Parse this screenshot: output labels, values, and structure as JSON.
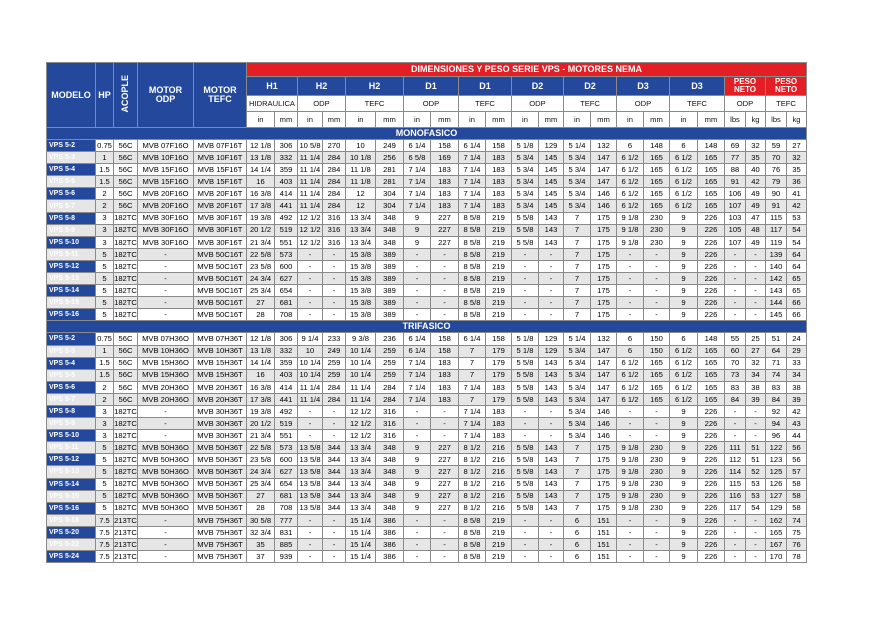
{
  "header": {
    "title": "DIMENSIONES Y PESO SERIE VPS - MOTORES NEMA",
    "fixed": [
      "MODELO",
      "HP",
      "ACOPLE",
      "MOTOR ODP",
      "MOTOR TEFC"
    ],
    "groups": [
      "H1",
      "H2",
      "H2",
      "D1",
      "D1",
      "D2",
      "D2",
      "D3",
      "D3",
      "PESO NETO",
      "PESO NETO"
    ],
    "motors": [
      "HIDRAULICA",
      "ODP",
      "TEFC",
      "ODP",
      "TEFC",
      "ODP",
      "TEFC",
      "ODP",
      "TEFC",
      "ODP",
      "TEFC"
    ],
    "units": [
      "in",
      "mm",
      "in",
      "mm",
      "in",
      "mm",
      "in",
      "mm",
      "in",
      "mm",
      "in",
      "mm",
      "in",
      "mm",
      "in",
      "mm",
      "in",
      "mm",
      "lbs",
      "kg",
      "lbs",
      "kg"
    ]
  },
  "sections": [
    {
      "title": "MONOFASICO",
      "rows": [
        [
          "VPS 5-2",
          0.75,
          "56C",
          "MVB 07F16O",
          "MVB 07F16T",
          "12 1/8",
          306,
          "10 5/8",
          270,
          10,
          249,
          "6 1/4",
          158,
          "6 1/4",
          158,
          "5 1/8",
          129,
          "5 1/4",
          132,
          6,
          148,
          6,
          148,
          69,
          32,
          59,
          27
        ],
        [
          "VPS 5-3",
          1,
          "56C",
          "MVB 10F16O",
          "MVB 10F16T",
          "13 1/8",
          332,
          "11 1/4",
          284,
          "10 1/8",
          256,
          "6 5/8",
          169,
          "7 1/4",
          183,
          "5 3/4",
          145,
          "5 3/4",
          147,
          "6 1/2",
          165,
          "6 1/2",
          165,
          77,
          35,
          70,
          32
        ],
        [
          "VPS 5-4",
          1.5,
          "56C",
          "MVB 15F16O",
          "MVB 15F16T",
          "14 1/4",
          359,
          "11 1/4",
          284,
          "11 1/8",
          281,
          "7 1/4",
          183,
          "7 1/4",
          183,
          "5 3/4",
          145,
          "5 3/4",
          147,
          "6 1/2",
          165,
          "6 1/2",
          165,
          88,
          40,
          76,
          35
        ],
        [
          "VPS 5-5",
          1.5,
          "56C",
          "MVB 15F16O",
          "MVB 15F16T",
          16,
          403,
          "11 1/4",
          284,
          "11 1/8",
          281,
          "7 1/4",
          183,
          "7 1/4",
          183,
          "5 3/4",
          145,
          "5 3/4",
          147,
          "6 1/2",
          165,
          "6 1/2",
          165,
          91,
          42,
          79,
          36
        ],
        [
          "VPS 5-6",
          2,
          "56C",
          "MVB 20F16O",
          "MVB 20F16T",
          "16 3/8",
          414,
          "11 1/4",
          284,
          12,
          304,
          "7 1/4",
          183,
          "7 1/4",
          183,
          "5 3/4",
          145,
          "5 3/4",
          146,
          "6 1/2",
          165,
          "6 1/2",
          165,
          106,
          49,
          90,
          41
        ],
        [
          "VPS 5-7",
          2,
          "56C",
          "MVB 20F16O",
          "MVB 20F16T",
          "17 3/8",
          441,
          "11 1/4",
          284,
          12,
          304,
          "7 1/4",
          183,
          "7 1/4",
          183,
          "5 3/4",
          145,
          "5 3/4",
          146,
          "6 1/2",
          165,
          "6 1/2",
          165,
          107,
          49,
          91,
          42
        ],
        [
          "VPS 5-8",
          3,
          "182TC",
          "MVB 30F16O",
          "MVB 30F16T",
          "19 3/8",
          492,
          "12 1/2",
          316,
          "13 3/4",
          348,
          9,
          227,
          "8 5/8",
          219,
          "5 5/8",
          143,
          7,
          175,
          "9 1/8",
          230,
          9,
          226,
          103,
          47,
          115,
          53
        ],
        [
          "VPS 5-9",
          3,
          "182TC",
          "MVB 30F16O",
          "MVB 30F16T",
          "20 1/2",
          519,
          "12 1/2",
          316,
          "13 3/4",
          348,
          9,
          227,
          "8 5/8",
          219,
          "5 5/8",
          143,
          7,
          175,
          "9 1/8",
          230,
          9,
          226,
          105,
          48,
          117,
          54
        ],
        [
          "VPS 5-10",
          3,
          "182TC",
          "MVB 30F16O",
          "MVB 30F16T",
          "21 3/4",
          551,
          "12 1/2",
          316,
          "13 3/4",
          348,
          9,
          227,
          "8 5/8",
          219,
          "5 5/8",
          143,
          7,
          175,
          "9 1/8",
          230,
          9,
          226,
          107,
          49,
          119,
          54
        ],
        [
          "VPS 5-11",
          5,
          "182TC",
          "-",
          "MVB 50C16T",
          "22 5/8",
          573,
          "-",
          "-",
          "15 3/8",
          389,
          "-",
          "-",
          "8 5/8",
          219,
          "-",
          "-",
          7,
          175,
          "-",
          "-",
          9,
          226,
          "-",
          "-",
          139,
          64
        ],
        [
          "VPS 5-12",
          5,
          "182TC",
          "-",
          "MVB 50C16T",
          "23 5/8",
          600,
          "-",
          "-",
          "15 3/8",
          389,
          "-",
          "-",
          "8 5/8",
          219,
          "-",
          "-",
          7,
          175,
          "-",
          "-",
          9,
          226,
          "-",
          "-",
          140,
          64
        ],
        [
          "VPS 5-13",
          5,
          "182TC",
          "-",
          "MVB 50C16T",
          "24 3/4",
          627,
          "-",
          "-",
          "15 3/8",
          389,
          "-",
          "-",
          "8 5/8",
          219,
          "-",
          "-",
          7,
          175,
          "-",
          "-",
          9,
          226,
          "-",
          "-",
          142,
          65
        ],
        [
          "VPS 5-14",
          5,
          "182TC",
          "-",
          "MVB 50C16T",
          "25 3/4",
          654,
          "-",
          "-",
          "15 3/8",
          389,
          "-",
          "-",
          "8 5/8",
          219,
          "-",
          "-",
          7,
          175,
          "-",
          "-",
          9,
          226,
          "-",
          "-",
          143,
          65
        ],
        [
          "VPS 5-15",
          5,
          "182TC",
          "-",
          "MVB 50C16T",
          27,
          681,
          "-",
          "-",
          "15 3/8",
          389,
          "-",
          "-",
          "8 5/8",
          219,
          "-",
          "-",
          7,
          175,
          "-",
          "-",
          9,
          226,
          "-",
          "-",
          144,
          66
        ],
        [
          "VPS 5-16",
          5,
          "182TC",
          "-",
          "MVB 50C16T",
          28,
          708,
          "-",
          "-",
          "15 3/8",
          389,
          "-",
          "-",
          "8 5/8",
          219,
          "-",
          "-",
          7,
          175,
          "-",
          "-",
          9,
          226,
          "-",
          "-",
          145,
          66
        ]
      ]
    },
    {
      "title": "TRIFASICO",
      "rows": [
        [
          "VPS 5-2",
          0.75,
          "56C",
          "MVB 07H36O",
          "MVB 07H36T",
          "12 1/8",
          306,
          "9 1/4",
          233,
          "9 3/8",
          236,
          "6 1/4",
          158,
          "6 1/4",
          158,
          "5 1/8",
          129,
          "5 1/4",
          132,
          6,
          150,
          6,
          148,
          55,
          25,
          51,
          24
        ],
        [
          "VPS 5-3",
          1,
          "56C",
          "MVB 10H36O",
          "MVB 10H36T",
          "13 1/8",
          332,
          10,
          249,
          "10 1/4",
          259,
          "6 1/4",
          158,
          7,
          179,
          "5 1/8",
          129,
          "5 3/4",
          147,
          6,
          150,
          "6 1/2",
          165,
          60,
          27,
          64,
          29
        ],
        [
          "VPS 5-4",
          1.5,
          "56C",
          "MVB 15H36O",
          "MVB 15H36T",
          "14 1/4",
          359,
          "10 1/4",
          259,
          "10 1/4",
          259,
          "7 1/4",
          183,
          7,
          179,
          "5 5/8",
          143,
          "5 3/4",
          147,
          "6 1/2",
          165,
          "6 1/2",
          165,
          70,
          32,
          71,
          33
        ],
        [
          "VPS 5-5",
          1.5,
          "56C",
          "MVB 15H36O",
          "MVB 15H36T",
          16,
          403,
          "10 1/4",
          259,
          "10 1/4",
          259,
          "7 1/4",
          183,
          7,
          179,
          "5 5/8",
          143,
          "5 3/4",
          147,
          "6 1/2",
          165,
          "6 1/2",
          165,
          73,
          34,
          74,
          34
        ],
        [
          "VPS 5-6",
          2,
          "56C",
          "MVB 20H36O",
          "MVB 20H36T",
          "16 3/8",
          414,
          "11 1/4",
          284,
          "11 1/4",
          284,
          "7 1/4",
          183,
          "7 1/4",
          183,
          "5 5/8",
          143,
          "5 3/4",
          147,
          "6 1/2",
          165,
          "6 1/2",
          165,
          83,
          38,
          83,
          38
        ],
        [
          "VPS 5-7",
          2,
          "56C",
          "MVB 20H36O",
          "MVB 20H36T",
          "17 3/8",
          441,
          "11 1/4",
          284,
          "11 1/4",
          284,
          "7 1/4",
          183,
          7,
          179,
          "5 5/8",
          143,
          "5 3/4",
          147,
          "6 1/2",
          165,
          "6 1/2",
          165,
          84,
          39,
          84,
          39
        ],
        [
          "VPS 5-8",
          3,
          "182TC",
          "-",
          "MVB 30H36T",
          "19 3/8",
          492,
          "-",
          "-",
          "12 1/2",
          316,
          "-",
          "-",
          "7 1/4",
          183,
          "-",
          "-",
          "5 3/4",
          146,
          "-",
          "-",
          9,
          226,
          "-",
          "-",
          92,
          42
        ],
        [
          "VPS 5-9",
          3,
          "182TC",
          "-",
          "MVB 30H36T",
          "20 1/2",
          519,
          "-",
          "-",
          "12 1/2",
          316,
          "-",
          "-",
          "7 1/4",
          183,
          "-",
          "-",
          "5 3/4",
          146,
          "-",
          "-",
          9,
          226,
          "-",
          "-",
          94,
          43
        ],
        [
          "VPS 5-10",
          3,
          "182TC",
          "-",
          "MVB 30H36T",
          "21 3/4",
          551,
          "-",
          "-",
          "12 1/2",
          316,
          "-",
          "-",
          "7 1/4",
          183,
          "-",
          "-",
          "5 3/4",
          146,
          "-",
          "-",
          9,
          226,
          "-",
          "-",
          96,
          44
        ],
        [
          "VPS 5-11",
          5,
          "182TC",
          "MVB 50H36O",
          "MVB 50H36T",
          "22 5/8",
          573,
          "13 5/8",
          344,
          "13 3/4",
          348,
          9,
          227,
          "8 1/2",
          216,
          "5 5/8",
          143,
          7,
          175,
          "9 1/8",
          230,
          9,
          226,
          111,
          51,
          122,
          56
        ],
        [
          "VPS 5-12",
          5,
          "182TC",
          "MVB 50H36O",
          "MVB 50H36T",
          "23 5/8",
          600,
          "13 5/8",
          344,
          "13 3/4",
          348,
          9,
          227,
          "8 1/2",
          216,
          "5 5/8",
          143,
          7,
          175,
          "9 1/8",
          230,
          9,
          226,
          112,
          51,
          123,
          56
        ],
        [
          "VPS 5-13",
          5,
          "182TC",
          "MVB 50H36O",
          "MVB 50H36T",
          "24 3/4",
          627,
          "13 5/8",
          344,
          "13 3/4",
          348,
          9,
          227,
          "8 1/2",
          216,
          "5 5/8",
          143,
          7,
          175,
          "9 1/8",
          230,
          9,
          226,
          114,
          52,
          125,
          57
        ],
        [
          "VPS 5-14",
          5,
          "182TC",
          "MVB 50H36O",
          "MVB 50H36T",
          "25 3/4",
          654,
          "13 5/8",
          344,
          "13 3/4",
          348,
          9,
          227,
          "8 1/2",
          216,
          "5 5/8",
          143,
          7,
          175,
          "9 1/8",
          230,
          9,
          226,
          115,
          53,
          126,
          58
        ],
        [
          "VPS 5-15",
          5,
          "182TC",
          "MVB 50H36O",
          "MVB 50H36T",
          27,
          681,
          "13 5/8",
          344,
          "13 3/4",
          348,
          9,
          227,
          "8 1/2",
          216,
          "5 5/8",
          143,
          7,
          175,
          "9 1/8",
          230,
          9,
          226,
          116,
          53,
          127,
          58
        ],
        [
          "VPS 5-16",
          5,
          "182TC",
          "MVB 50H36O",
          "MVB 50H36T",
          28,
          708,
          "13 5/8",
          344,
          "13 3/4",
          348,
          9,
          227,
          "8 1/2",
          216,
          "5 5/8",
          143,
          7,
          175,
          "9 1/8",
          230,
          9,
          226,
          117,
          54,
          129,
          58
        ],
        [
          "VPS 5-18",
          7.5,
          "213TC",
          "-",
          "MVB 75H36T",
          "30 5/8",
          777,
          "-",
          "-",
          "15 1/4",
          386,
          "-",
          "-",
          "8 5/8",
          219,
          "-",
          "-",
          6,
          151,
          "-",
          "-",
          9,
          226,
          "-",
          "-",
          162,
          74
        ],
        [
          "VPS 5-20",
          7.5,
          "213TC",
          "-",
          "MVB 75H36T",
          "32 3/4",
          831,
          "-",
          "-",
          "15 1/4",
          386,
          "-",
          "-",
          "8 5/8",
          219,
          "-",
          "-",
          6,
          151,
          "-",
          "-",
          9,
          226,
          "-",
          "-",
          165,
          75
        ],
        [
          "VPS 5-22",
          7.5,
          "213TC",
          "-",
          "MVB 75H36T",
          35,
          885,
          "-",
          "-",
          "15 1/4",
          386,
          "-",
          "-",
          "8 5/8",
          219,
          "-",
          "-",
          6,
          151,
          "-",
          "-",
          9,
          226,
          "-",
          "-",
          167,
          76
        ],
        [
          "VPS 5-24",
          7.5,
          "213TC",
          "-",
          "MVB 75H36T",
          37,
          939,
          "-",
          "-",
          "15 1/4",
          386,
          "-",
          "-",
          "8 5/8",
          219,
          "-",
          "-",
          6,
          151,
          "-",
          "-",
          9,
          226,
          "-",
          "-",
          170,
          78
        ]
      ]
    }
  ]
}
